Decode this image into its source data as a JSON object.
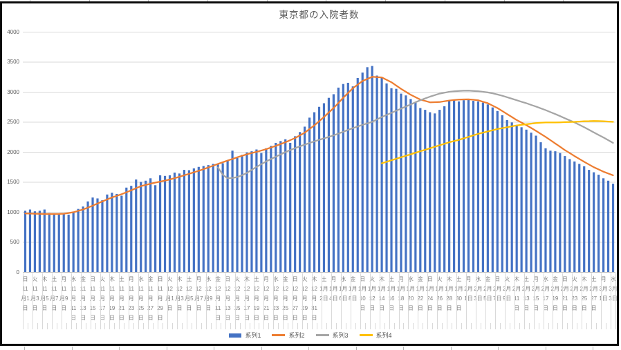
{
  "chart_data": {
    "type": "combo-bar-line",
    "title": "東京都の入院者数",
    "ylim": [
      0,
      4000
    ],
    "y_ticks": [
      0,
      500,
      1000,
      1500,
      2000,
      2500,
      3000,
      3500,
      4000
    ],
    "n_categories": 123,
    "x_label_interval": 2,
    "legend_position": "bottom",
    "x_labels_lines": [
      [
        "日",
        "11",
        "月1",
        "日"
      ],
      [
        "火",
        "11",
        "月3",
        "日"
      ],
      [
        "木",
        "11",
        "月5",
        "日"
      ],
      [
        "土",
        "11",
        "月7",
        "日"
      ],
      [
        "月",
        "11",
        "月9",
        "日"
      ],
      [
        "水",
        "11",
        "月",
        "11",
        "日"
      ],
      [
        "金",
        "11",
        "月",
        "13",
        "日"
      ],
      [
        "日",
        "11",
        "月",
        "15",
        "日"
      ],
      [
        "火",
        "11",
        "月",
        "17",
        "日"
      ],
      [
        "木",
        "11",
        "月",
        "19",
        "日"
      ],
      [
        "土",
        "11",
        "月",
        "21",
        "日"
      ],
      [
        "月",
        "11",
        "月",
        "23",
        "日"
      ],
      [
        "水",
        "11",
        "月",
        "25",
        "日"
      ],
      [
        "金",
        "11",
        "月",
        "27",
        "日"
      ],
      [
        "日",
        "11",
        "月",
        "29",
        "日"
      ],
      [
        "火",
        "12",
        "月1",
        "日"
      ],
      [
        "木",
        "12",
        "月3",
        "日"
      ],
      [
        "土",
        "12",
        "月5",
        "日"
      ],
      [
        "月",
        "12",
        "月7",
        "日"
      ],
      [
        "水",
        "12",
        "月9",
        "日"
      ],
      [
        "金",
        "12",
        "月",
        "11",
        "日"
      ],
      [
        "日",
        "12",
        "月",
        "13",
        "日"
      ],
      [
        "火",
        "12",
        "月",
        "15",
        "日"
      ],
      [
        "木",
        "12",
        "月",
        "17",
        "日"
      ],
      [
        "土",
        "12",
        "月",
        "19",
        "日"
      ],
      [
        "月",
        "12",
        "月",
        "21",
        "日"
      ],
      [
        "水",
        "12",
        "月",
        "23",
        "日"
      ],
      [
        "金",
        "12",
        "月",
        "25",
        "日"
      ],
      [
        "日",
        "12",
        "月",
        "27",
        "日"
      ],
      [
        "火",
        "12",
        "月",
        "29",
        "日"
      ],
      [
        "木",
        "12",
        "月",
        "31",
        "日"
      ],
      [
        "土",
        "1月",
        "2日"
      ],
      [
        "月",
        "1月",
        "4日"
      ],
      [
        "水",
        "1月",
        "6日"
      ],
      [
        "金",
        "1月",
        "8日"
      ],
      [
        "日",
        "1月",
        "10",
        "日"
      ],
      [
        "火",
        "1月",
        "12",
        "日"
      ],
      [
        "木",
        "1月",
        "14",
        "日"
      ],
      [
        "土",
        "1月",
        "16",
        "日"
      ],
      [
        "月",
        "1月",
        "18",
        "日"
      ],
      [
        "水",
        "1月",
        "20",
        "日"
      ],
      [
        "金",
        "1月",
        "22",
        "日"
      ],
      [
        "日",
        "1月",
        "24",
        "日"
      ],
      [
        "火",
        "1月",
        "26",
        "日"
      ],
      [
        "木",
        "1月",
        "28",
        "日"
      ],
      [
        "土",
        "1月",
        "30",
        "日"
      ],
      [
        "月",
        "2月",
        "1日"
      ],
      [
        "水",
        "2月",
        "3日"
      ],
      [
        "金",
        "2月",
        "5日"
      ],
      [
        "日",
        "2月",
        "7日"
      ],
      [
        "火",
        "2月",
        "9日"
      ],
      [
        "木",
        "2月",
        "11",
        "日"
      ],
      [
        "土",
        "2月",
        "13",
        "日"
      ],
      [
        "月",
        "2月",
        "15",
        "日"
      ],
      [
        "水",
        "2月",
        "17",
        "日"
      ],
      [
        "金",
        "2月",
        "19",
        "日"
      ],
      [
        "日",
        "2月",
        "21",
        "日"
      ],
      [
        "火",
        "2月",
        "23",
        "日"
      ],
      [
        "木",
        "2月",
        "25",
        "日"
      ],
      [
        "土",
        "2月",
        "27",
        "日"
      ],
      [
        "月",
        "3月",
        "1日"
      ],
      [
        "水",
        "3月",
        "3日"
      ]
    ],
    "series": [
      {
        "name": "系列1",
        "type": "bar",
        "color": "#4472C4",
        "start": 0,
        "values": [
          1020,
          1040,
          1010,
          1020,
          1040,
          980,
          970,
          970,
          960,
          955,
          995,
          1050,
          1090,
          1175,
          1240,
          1225,
          1195,
          1290,
          1320,
          1300,
          1270,
          1405,
          1435,
          1540,
          1500,
          1520,
          1560,
          1445,
          1610,
          1600,
          1610,
          1655,
          1640,
          1700,
          1695,
          1725,
          1750,
          1765,
          1780,
          1800,
          1790,
          1810,
          1850,
          2020,
          1900,
          1950,
          1990,
          2010,
          2040,
          1980,
          2060,
          2100,
          2150,
          2180,
          2210,
          2150,
          2260,
          2330,
          2420,
          2570,
          2660,
          2750,
          2810,
          2900,
          2960,
          3070,
          3130,
          3150,
          3090,
          3230,
          3320,
          3410,
          3430,
          3270,
          3240,
          3140,
          3060,
          3050,
          2970,
          2940,
          2880,
          2820,
          2730,
          2700,
          2660,
          2640,
          2700,
          2760,
          2850,
          2870,
          2840,
          2860,
          2880,
          2850,
          2840,
          2820,
          2790,
          2740,
          2680,
          2610,
          2530,
          2490,
          2450,
          2410,
          2370,
          2320,
          2270,
          2160,
          2060,
          2020,
          2010,
          1980,
          1930,
          1880,
          1840,
          1800,
          1760,
          1700,
          1660,
          1620,
          1560,
          1520,
          1470
        ]
      },
      {
        "name": "系列2",
        "type": "line",
        "color": "#ED7D31",
        "start": 0,
        "values": [
          975,
          972,
          970,
          968,
          965,
          965,
          965,
          967,
          970,
          982,
          995,
          1018,
          1040,
          1072,
          1105,
          1140,
          1175,
          1208,
          1240,
          1268,
          1295,
          1328,
          1360,
          1395,
          1430,
          1450,
          1470,
          1488,
          1505,
          1522,
          1540,
          1562,
          1585,
          1610,
          1635,
          1660,
          1685,
          1712,
          1740,
          1770,
          1800,
          1828,
          1855,
          1882,
          1910,
          1935,
          1960,
          1980,
          2000,
          2022,
          2045,
          2072,
          2100,
          2130,
          2160,
          2195,
          2230,
          2275,
          2320,
          2380,
          2440,
          2510,
          2580,
          2655,
          2730,
          2815,
          2900,
          2980,
          3060,
          3120,
          3180,
          3215,
          3250,
          3245,
          3240,
          3200,
          3160,
          3105,
          3050,
          3000,
          2950,
          2910,
          2870,
          2848,
          2825,
          2828,
          2830,
          2843,
          2855,
          2863,
          2870,
          2873,
          2875,
          2868,
          2860,
          2835,
          2810,
          2770,
          2730,
          2680,
          2630,
          2580,
          2530,
          2488,
          2445,
          2398,
          2350,
          2300,
          2250,
          2195,
          2140,
          2085,
          2030,
          1980,
          1930,
          1883,
          1835,
          1790,
          1745,
          1708,
          1670,
          1640,
          1610
        ]
      },
      {
        "name": "系列3",
        "type": "line",
        "color": "#A5A5A5",
        "start": 40,
        "values": [
          1740,
          1620,
          1560,
          1565,
          1580,
          1610,
          1650,
          1700,
          1750,
          1795,
          1840,
          1880,
          1920,
          1958,
          1995,
          2030,
          2062,
          2092,
          2120,
          2148,
          2175,
          2200,
          2225,
          2250,
          2275,
          2305,
          2335,
          2365,
          2395,
          2422,
          2450,
          2475,
          2500,
          2540,
          2580,
          2615,
          2650,
          2685,
          2720,
          2755,
          2790,
          2825,
          2860,
          2890,
          2920,
          2945,
          2970,
          2985,
          3000,
          3008,
          3015,
          3018,
          3020,
          3015,
          3010,
          3000,
          2990,
          2975,
          2955,
          2935,
          2910,
          2885,
          2860,
          2835,
          2810,
          2782,
          2755,
          2725,
          2695,
          2662,
          2630,
          2595,
          2560,
          2525,
          2490,
          2450,
          2410,
          2368,
          2325,
          2282,
          2240,
          2195,
          2150
        ]
      },
      {
        "name": "系列4",
        "type": "line",
        "color": "#FFC000",
        "start": 74,
        "values": [
          1810,
          1835,
          1860,
          1885,
          1910,
          1935,
          1960,
          1985,
          2010,
          2035,
          2060,
          2085,
          2110,
          2135,
          2160,
          2180,
          2200,
          2225,
          2250,
          2275,
          2300,
          2320,
          2340,
          2360,
          2380,
          2395,
          2410,
          2425,
          2440,
          2450,
          2460,
          2470,
          2480,
          2485,
          2490,
          2490,
          2490,
          2492,
          2495,
          2498,
          2500,
          2505,
          2510,
          2512,
          2515,
          2513,
          2510,
          2505,
          2500
        ]
      }
    ]
  },
  "style": {
    "gridline_color": "#D9D9D9",
    "axis_line_color": "#BFBFBF",
    "axis_label_color": "#595959",
    "x_label_color": "#7F7F7F",
    "title_color": "#595959",
    "frame_color": "#0A0A0A"
  }
}
